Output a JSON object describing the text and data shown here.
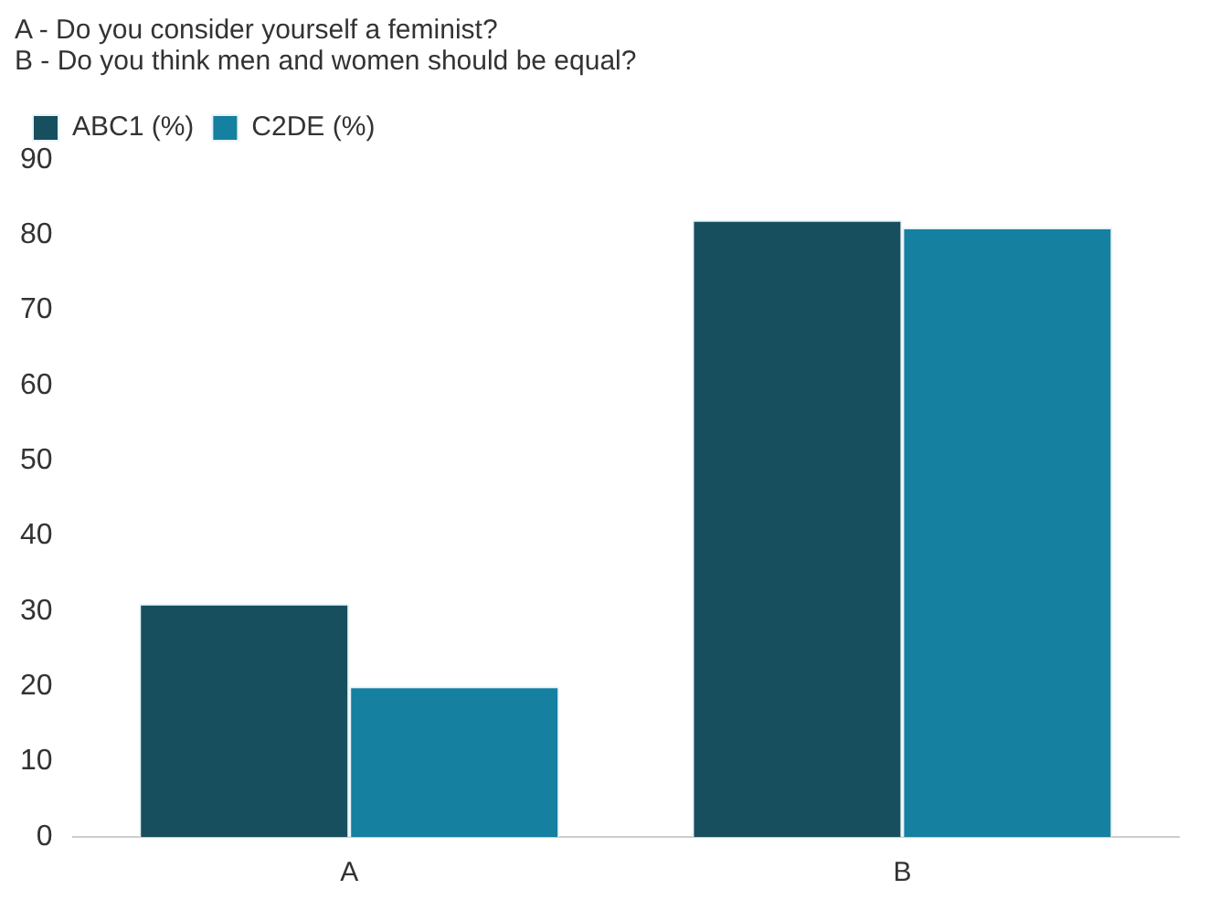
{
  "chart_data": {
    "type": "bar",
    "title": "A - Do you consider yourself a feminist?\nB - Do you think men and women should be equal?",
    "categories": [
      "A",
      "B"
    ],
    "series": [
      {
        "name": "ABC1 (%)",
        "color": "#174f5f",
        "values": [
          31,
          82
        ]
      },
      {
        "name": "C2DE (%)",
        "color": "#1580a0",
        "values": [
          20,
          81
        ]
      }
    ],
    "ylim": [
      0,
      90
    ],
    "yticks": [
      0,
      10,
      20,
      30,
      40,
      50,
      60,
      70,
      80,
      90
    ],
    "grid": false,
    "legend": "top left"
  }
}
